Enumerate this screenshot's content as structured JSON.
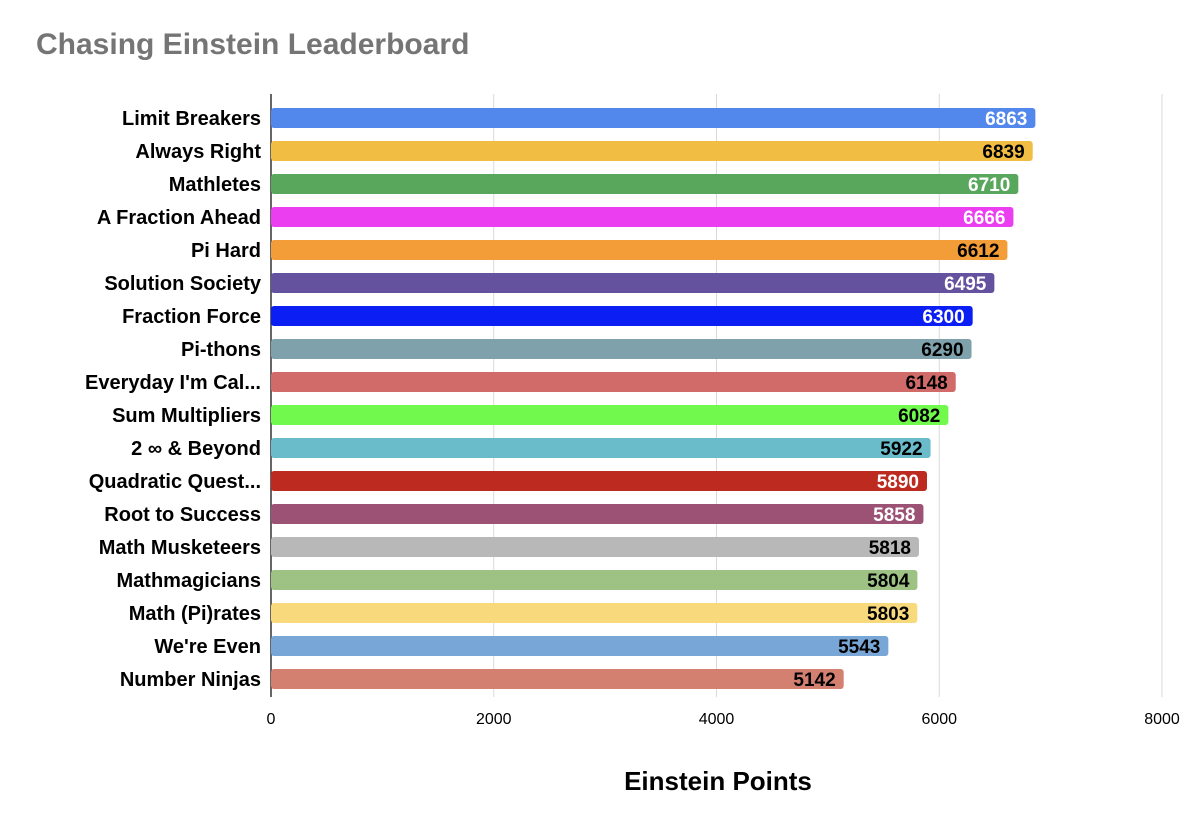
{
  "chart_data": {
    "type": "bar",
    "orientation": "horizontal",
    "title": "Chasing Einstein Leaderboard",
    "xlabel": "Einstein Points",
    "ylabel": "",
    "xlim": [
      0,
      8000
    ],
    "x_ticks": [
      "0",
      "2000",
      "4000",
      "6000",
      "8000"
    ],
    "grid": true,
    "legend": "none",
    "categories": [
      "Limit Breakers",
      "Always Right",
      "Mathletes",
      "A Fraction Ahead",
      "Pi Hard",
      "Solution Society",
      "Fraction Force",
      "Pi-thons",
      "Everyday I'm Cal...",
      "Sum Multipliers",
      "2 ∞ & Beyond",
      "Quadratic Quest...",
      "Root to Success",
      "Math Musketeers",
      "Mathmagicians",
      "Math (Pi)rates",
      "We're Even",
      "Number Ninjas"
    ],
    "values": [
      6863,
      6839,
      6710,
      6666,
      6612,
      6495,
      6300,
      6290,
      6148,
      6082,
      5922,
      5890,
      5858,
      5818,
      5804,
      5803,
      5543,
      5142
    ],
    "bar_colors": [
      "#5287ec",
      "#f1bd42",
      "#59a65d",
      "#ea3ef0",
      "#f29d38",
      "#65529f",
      "#0b1ff5",
      "#7fa1ac",
      "#d16b6a",
      "#71f94d",
      "#6abccb",
      "#bc2a20",
      "#9c5275",
      "#b8b8b8",
      "#9dc283",
      "#f8d97b",
      "#78a7d7",
      "#d48071"
    ],
    "label_colors": [
      "#ffffff",
      "#000000",
      "#ffffff",
      "#ffffff",
      "#000000",
      "#ffffff",
      "#ffffff",
      "#000000",
      "#000000",
      "#000000",
      "#000000",
      "#ffffff",
      "#ffffff",
      "#000000",
      "#000000",
      "#000000",
      "#000000",
      "#000000"
    ]
  }
}
